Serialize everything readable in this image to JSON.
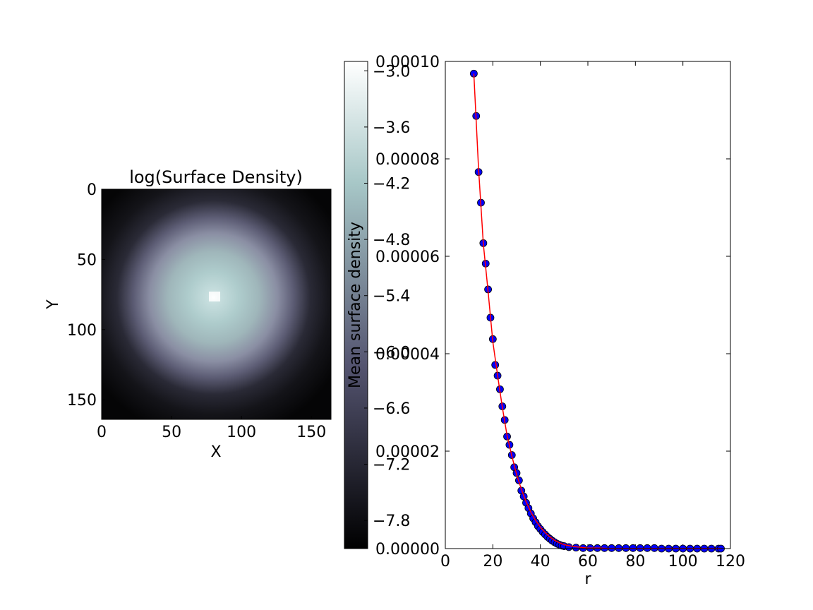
{
  "chart_data": [
    {
      "type": "heatmap",
      "title": "log(Surface Density)",
      "xlabel": "X",
      "ylabel": "Y",
      "xlim": [
        0,
        164
      ],
      "ylim": [
        164,
        0
      ],
      "xticks": [
        "0",
        "50",
        "100",
        "150"
      ],
      "yticks": [
        "0",
        "50",
        "100",
        "150"
      ],
      "colormap": "bone",
      "center": [
        80,
        77
      ],
      "colorbar": {
        "range": [
          -8.1,
          -2.9
        ],
        "ticks": [
          "−3.0",
          "−3.6",
          "−4.2",
          "−4.8",
          "−5.4",
          "−6.0",
          "−6.6",
          "−7.2",
          "−7.8"
        ],
        "tick_values": [
          -3.0,
          -3.6,
          -4.2,
          -4.8,
          -5.4,
          -6.0,
          -6.6,
          -7.2,
          -7.8
        ]
      }
    },
    {
      "type": "scatter",
      "xlabel": "r",
      "ylabel": "Mean surface density",
      "xlim": [
        0,
        120
      ],
      "ylim": [
        0,
        0.0001
      ],
      "xticks": [
        "0",
        "20",
        "40",
        "60",
        "80",
        "100",
        "120"
      ],
      "yticks": [
        "0.00000",
        "0.00002",
        "0.00004",
        "0.00006",
        "0.00008",
        "0.00010"
      ],
      "marker_color": "#0000ff",
      "fit_color": "#ff0000",
      "series": [
        {
          "points": {
            "x": [
              12,
              13,
              14,
              15,
              16,
              17,
              18,
              19,
              20,
              21,
              22,
              23,
              24,
              25,
              26,
              27,
              28,
              29,
              30,
              31,
              32,
              33,
              34,
              35,
              36,
              37,
              38,
              39,
              40,
              41,
              42,
              43,
              44,
              45,
              46,
              47,
              48,
              49,
              50,
              52,
              55,
              58,
              61,
              64,
              67,
              70,
              73,
              76,
              79,
              82,
              85,
              88,
              91,
              94,
              97,
              100,
              103,
              106,
              109,
              112,
              115,
              116
            ],
            "y": [
              9.75e-05,
              8.88e-05,
              7.73e-05,
              7.1e-05,
              6.27e-05,
              5.85e-05,
              5.32e-05,
              4.74e-05,
              4.3e-05,
              3.77e-05,
              3.55e-05,
              3.27e-05,
              2.92e-05,
              2.64e-05,
              2.3e-05,
              2.13e-05,
              1.92e-05,
              1.67e-05,
              1.55e-05,
              1.4e-05,
              1.19e-05,
              1.07e-05,
              9.4e-06,
              8.3e-06,
              7.2e-06,
              6.2e-06,
              5.4e-06,
              4.6e-06,
              4e-06,
              3.4e-06,
              2.9e-06,
              2.4e-06,
              2e-06,
              1.6e-06,
              1.3e-06,
              1e-06,
              8e-07,
              6e-07,
              5e-07,
              3e-07,
              2e-07,
              1e-07,
              1e-07,
              1e-07,
              1e-07,
              1e-07,
              1e-07,
              1e-07,
              1e-07,
              1e-07,
              1e-07,
              1e-07,
              0.0,
              0.0,
              0.0,
              0.0,
              0.0,
              0.0,
              0.0,
              0.0,
              0.0,
              0.0
            ]
          },
          "fit": {
            "x": [
              12,
              14,
              16,
              18,
              20,
              22,
              24,
              26,
              28,
              30,
              32,
              34,
              36,
              38,
              40,
              42,
              44,
              46,
              48,
              50,
              53,
              56,
              60,
              65,
              70,
              80,
              90,
              100,
              110,
              116
            ],
            "y": [
              9.75e-05,
              7.8e-05,
              6.25e-05,
              5.28e-05,
              4.25e-05,
              3.55e-05,
              2.9e-05,
              2.32e-05,
              1.9e-05,
              1.52e-05,
              1.22e-05,
              9.6e-06,
              7.5e-06,
              5.8e-06,
              4.4e-06,
              3.3e-06,
              2.4e-06,
              1.7e-06,
              1.2e-06,
              8e-07,
              5e-07,
              3e-07,
              1e-07,
              1e-07,
              0.0,
              0.0,
              0.0,
              0.0,
              0.0,
              0.0
            ]
          }
        }
      ]
    }
  ]
}
